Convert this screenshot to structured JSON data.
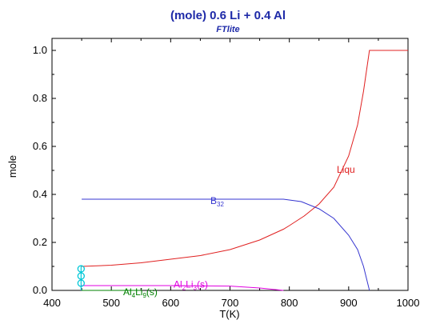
{
  "chart_data": {
    "type": "line",
    "title": "(mole) 0.6 Li  +  0.4 Al",
    "subtitle": "FTlite",
    "xlabel": "T(K)",
    "ylabel": "mole",
    "xlim": [
      400,
      1000
    ],
    "ylim": [
      0,
      1.05
    ],
    "xticks": [
      400,
      500,
      600,
      700,
      800,
      900,
      1000
    ],
    "xtick_labels": [
      "400",
      "500",
      "600",
      "700",
      "800",
      "900",
      "1000"
    ],
    "yticks": [
      0,
      0.2,
      0.4,
      0.6,
      0.8,
      1.0
    ],
    "ytick_labels": [
      "0.0",
      "0.2",
      "0.4",
      "0.6",
      "0.8",
      "1.0"
    ],
    "grid": false,
    "legend": "none",
    "colors": {
      "title": "#1e2aa8",
      "Liqu": "#e02020",
      "B32": "#3535d0",
      "Al2Li3": "#e000e0",
      "Al4Li9": "#008000",
      "marker": "#00c8d8"
    },
    "series": [
      {
        "key": "Liqu",
        "label_main": "Liqu",
        "label_sub": "",
        "label_tail": "",
        "label_at": [
          880,
          0.49
        ],
        "x": [
          450,
          500,
          550,
          600,
          650,
          700,
          750,
          790,
          800,
          825,
          850,
          875,
          900,
          915,
          925,
          935,
          1000
        ],
        "y": [
          0.1,
          0.105,
          0.115,
          0.13,
          0.145,
          0.17,
          0.21,
          0.255,
          0.27,
          0.31,
          0.36,
          0.43,
          0.56,
          0.69,
          0.83,
          1.0,
          1.0
        ]
      },
      {
        "key": "B32",
        "label_main": "B",
        "label_sub": "32",
        "label_tail": "",
        "label_at": [
          667,
          0.36
        ],
        "x": [
          450,
          600,
          700,
          790,
          820,
          850,
          875,
          900,
          915,
          925,
          935
        ],
        "y": [
          0.38,
          0.38,
          0.38,
          0.38,
          0.37,
          0.34,
          0.3,
          0.23,
          0.17,
          0.1,
          0.0
        ]
      },
      {
        "key": "Al2Li3",
        "label_main": "Al",
        "label_sub": "2",
        "label_mid": "Li",
        "label_sub2": "3",
        "label_tail": "(s)",
        "label_at": [
          605,
          0.012
        ],
        "x": [
          450,
          600,
          700,
          750,
          790
        ],
        "y": [
          0.02,
          0.02,
          0.018,
          0.01,
          0.0
        ]
      },
      {
        "key": "Al4Li9",
        "label_main": "Al",
        "label_sub": "4",
        "label_mid": "Li",
        "label_sub2": "9",
        "label_tail": "(s)",
        "label_at": [
          520,
          -0.02
        ],
        "x": [
          450,
          550
        ],
        "y": [
          0.0,
          0.0
        ]
      }
    ],
    "markers": {
      "x": 449,
      "y": [
        0.03,
        0.06,
        0.09
      ]
    }
  }
}
